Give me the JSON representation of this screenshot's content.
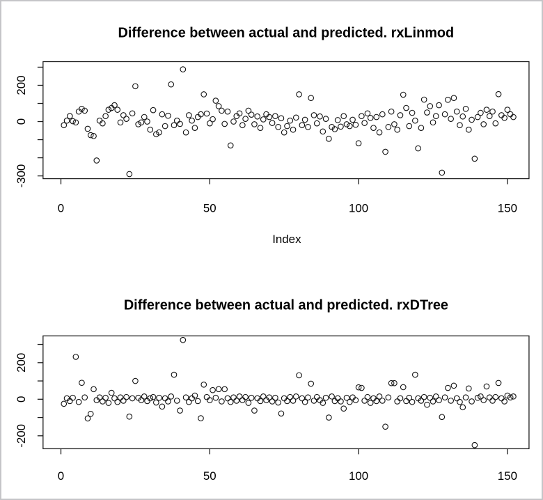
{
  "window": {
    "background": "#ffffff",
    "border_color": "#c5c5c8"
  },
  "styles": {
    "axis_color": "#1c1c1c",
    "point_color": "#111111",
    "text_color": "#000000"
  },
  "chart_data": [
    {
      "type": "scatter",
      "title": "Difference between actual and predicted. rxLinmod",
      "xlabel": "Index",
      "ylabel": "",
      "marker": "open-circle",
      "grid": false,
      "legend": "none",
      "xlim": [
        -6,
        157
      ],
      "ylim": [
        -315,
        330
      ],
      "x_ticks": [
        {
          "v": 0,
          "label": "0"
        },
        {
          "v": 50,
          "label": "50"
        },
        {
          "v": 100,
          "label": "100"
        },
        {
          "v": 150,
          "label": "150"
        }
      ],
      "y_ticks": [
        {
          "v": 300,
          "label": ""
        },
        {
          "v": 200,
          "label": "200"
        },
        {
          "v": 100,
          "label": ""
        },
        {
          "v": 0,
          "label": "0"
        },
        {
          "v": -100,
          "label": ""
        },
        {
          "v": -200,
          "label": ""
        },
        {
          "v": -300,
          "label": "-300"
        }
      ],
      "x_start": 1,
      "y": [
        -20,
        5,
        30,
        2,
        -5,
        55,
        70,
        60,
        -40,
        -75,
        -80,
        -215,
        5,
        -10,
        30,
        65,
        75,
        90,
        65,
        -5,
        35,
        15,
        -290,
        45,
        195,
        -15,
        -5,
        25,
        0,
        -45,
        63,
        -70,
        -60,
        40,
        -25,
        32,
        205,
        -20,
        5,
        -13,
        288,
        -60,
        35,
        5,
        -35,
        25,
        40,
        150,
        44,
        -10,
        13,
        115,
        85,
        60,
        -13,
        55,
        -132,
        0,
        30,
        45,
        -20,
        15,
        60,
        38,
        -15,
        28,
        -35,
        12,
        40,
        25,
        -8,
        30,
        -30,
        18,
        -60,
        -25,
        5,
        -45,
        22,
        150,
        -20,
        10,
        -30,
        130,
        35,
        -10,
        28,
        -55,
        15,
        -95,
        -30,
        -42,
        8,
        -28,
        30,
        -15,
        -25,
        10,
        -18,
        -120,
        30,
        -8,
        45,
        20,
        -35,
        25,
        -60,
        40,
        -167,
        -30,
        55,
        -15,
        -45,
        35,
        148,
        75,
        -25,
        48,
        5,
        -148,
        -35,
        121,
        50,
        85,
        -5,
        30,
        90,
        -282,
        40,
        120,
        15,
        130,
        55,
        -20,
        28,
        70,
        -45,
        10,
        -205,
        25,
        48,
        -15,
        65,
        30,
        55,
        -10,
        151,
        35,
        20,
        65,
        40,
        25
      ]
    },
    {
      "type": "scatter",
      "title": "Difference between actual and predicted. rxDTree",
      "xlabel": "",
      "ylabel": "",
      "marker": "open-circle",
      "grid": false,
      "legend": "none",
      "xlim": [
        -6,
        157
      ],
      "ylim": [
        -271,
        347
      ],
      "x_ticks": [
        {
          "v": 0,
          "label": "0"
        },
        {
          "v": 50,
          "label": "50"
        },
        {
          "v": 100,
          "label": "100"
        },
        {
          "v": 150,
          "label": "150"
        }
      ],
      "y_ticks": [
        {
          "v": 300,
          "label": ""
        },
        {
          "v": 200,
          "label": "200"
        },
        {
          "v": 100,
          "label": ""
        },
        {
          "v": 0,
          "label": "0"
        },
        {
          "v": -100,
          "label": ""
        },
        {
          "v": -200,
          "label": "-200"
        }
      ],
      "x_start": 1,
      "y": [
        -25,
        5,
        -10,
        8,
        232,
        -15,
        90,
        10,
        -105,
        -80,
        55,
        -5,
        10,
        -12,
        8,
        -20,
        35,
        5,
        -15,
        10,
        -8,
        12,
        -95,
        5,
        100,
        8,
        -5,
        15,
        -10,
        5,
        12,
        -18,
        8,
        -40,
        5,
        -12,
        15,
        134,
        -8,
        -62,
        324,
        10,
        -15,
        5,
        20,
        -10,
        -104,
        80,
        12,
        -5,
        50,
        8,
        55,
        -12,
        55,
        5,
        -15,
        10,
        -8,
        15,
        -5,
        12,
        -20,
        8,
        -62,
        5,
        -10,
        15,
        -5,
        10,
        -12,
        8,
        -18,
        -78,
        5,
        -10,
        12,
        -8,
        15,
        131,
        5,
        -15,
        10,
        85,
        -8,
        12,
        -5,
        -20,
        8,
        -100,
        15,
        -10,
        5,
        -12,
        -51,
        8,
        -15,
        10,
        -5,
        65,
        62,
        -8,
        12,
        -20,
        5,
        -10,
        15,
        -8,
        -150,
        10,
        88,
        88,
        -12,
        5,
        66,
        -10,
        8,
        -15,
        134,
        5,
        -8,
        12,
        -30,
        8,
        -12,
        15,
        -5,
        -97,
        10,
        62,
        -8,
        74,
        5,
        -15,
        -44,
        10,
        59,
        -12,
        -251,
        8,
        15,
        -5,
        70,
        10,
        -8,
        12,
        89,
        5,
        -12,
        20,
        10,
        15
      ]
    }
  ]
}
